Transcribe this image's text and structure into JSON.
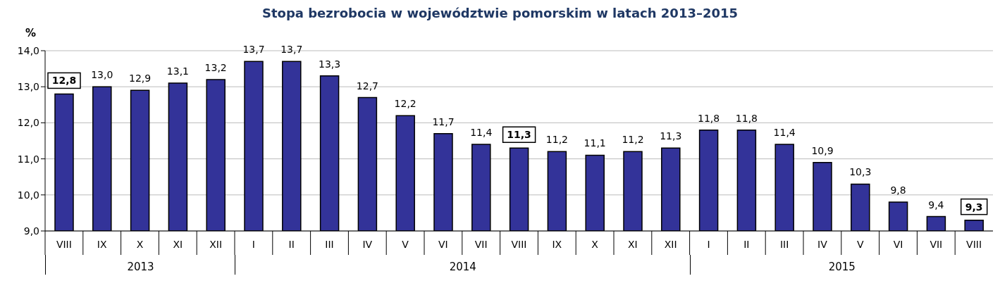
{
  "chart_data": {
    "type": "bar",
    "title": "Stopa bezrobocia w województwie pomorskim w latach 2013–2015",
    "ylabel": "%",
    "categories": [
      "VIII",
      "IX",
      "X",
      "XI",
      "XII",
      "I",
      "II",
      "III",
      "IV",
      "V",
      "VI",
      "VII",
      "VIII",
      "IX",
      "X",
      "XI",
      "XII",
      "I",
      "II",
      "III",
      "IV",
      "V",
      "VI",
      "VII",
      "VIII"
    ],
    "values": [
      12.8,
      13.0,
      12.9,
      13.1,
      13.2,
      13.7,
      13.7,
      13.3,
      12.7,
      12.2,
      11.7,
      11.4,
      11.3,
      11.2,
      11.1,
      11.2,
      11.3,
      11.8,
      11.8,
      11.4,
      10.9,
      10.3,
      9.8,
      9.4,
      9.3
    ],
    "color": "#333399",
    "ylim": [
      9,
      14
    ],
    "yticks": [
      {
        "value": 9,
        "label": "9,0"
      },
      {
        "value": 10,
        "label": "10,0"
      },
      {
        "value": 11,
        "label": "11,0"
      },
      {
        "value": 12,
        "label": "12,0"
      },
      {
        "value": 13,
        "label": "13,0"
      },
      {
        "value": 14,
        "label": "14,0"
      }
    ],
    "value_labels": [
      "12,8",
      "13,0",
      "12,9",
      "13,1",
      "13,2",
      "13,7",
      "13,7",
      "13,3",
      "12,7",
      "12,2",
      "11,7",
      "11,4",
      "11,3",
      "11,2",
      "11,1",
      "11,2",
      "11,3",
      "11,8",
      "11,8",
      "11,4",
      "10,9",
      "10,3",
      "9,8",
      "9,4",
      "9,3"
    ],
    "grid": "y",
    "annotations": [
      "2013",
      "2014",
      "2015"
    ]
  }
}
